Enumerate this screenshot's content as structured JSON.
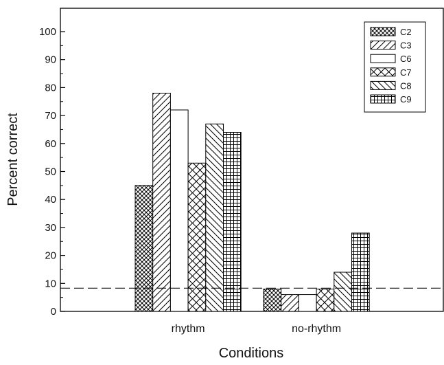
{
  "chart_data": {
    "type": "bar",
    "title": "",
    "xlabel": "Conditions",
    "ylabel": "Percent correct",
    "categories": [
      "rhythm",
      "no-rhythm"
    ],
    "ylim": [
      0,
      108
    ],
    "yticks": [
      0,
      10,
      20,
      30,
      40,
      50,
      60,
      70,
      80,
      90,
      100
    ],
    "reference_line": {
      "y": 8.3,
      "style": "dashed"
    },
    "legend_position": "top-right",
    "grid": false,
    "series": [
      {
        "name": "C2",
        "pattern": "crosshatch-diagonal-dense",
        "values": [
          45,
          8
        ]
      },
      {
        "name": "C3",
        "pattern": "diagonal-forward",
        "values": [
          78,
          6
        ]
      },
      {
        "name": "C6",
        "pattern": "empty",
        "values": [
          72,
          6
        ]
      },
      {
        "name": "C7",
        "pattern": "crosshatch-diagonal-wide",
        "values": [
          53,
          8
        ]
      },
      {
        "name": "C8",
        "pattern": "diagonal-backward",
        "values": [
          67,
          14
        ]
      },
      {
        "name": "C9",
        "pattern": "grid",
        "values": [
          64,
          28
        ]
      }
    ]
  }
}
